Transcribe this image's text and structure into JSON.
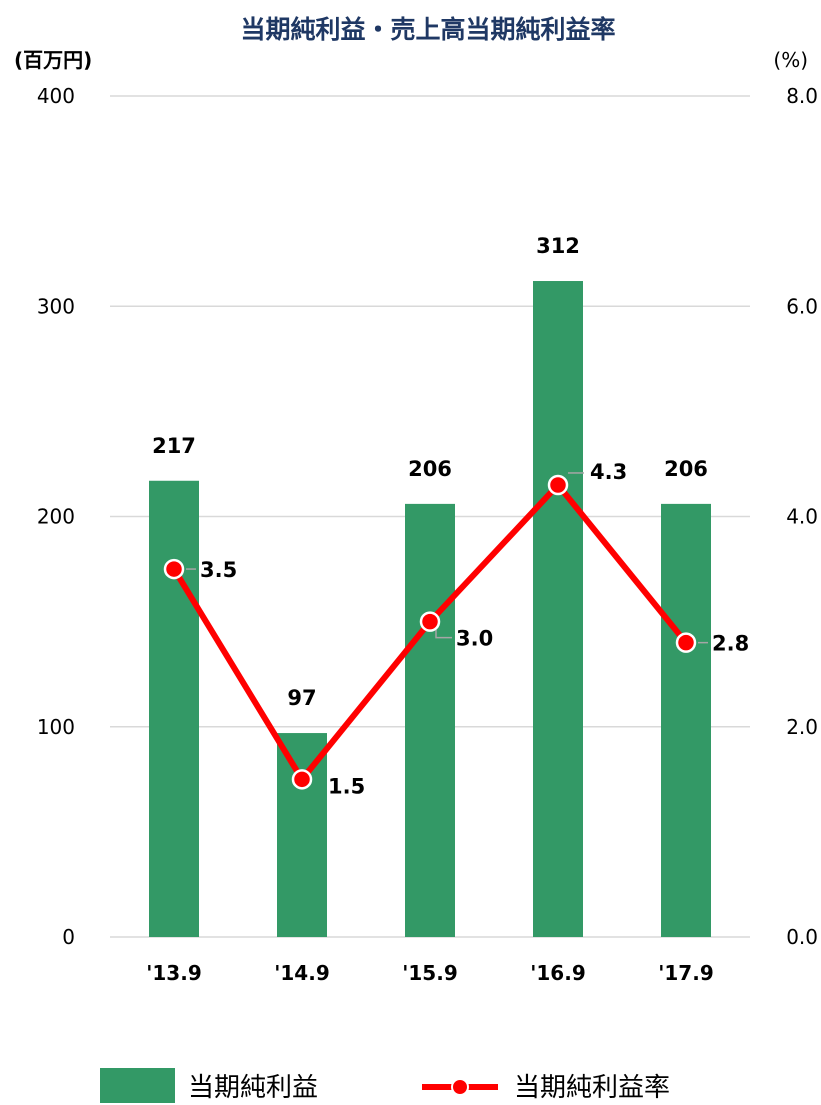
{
  "chart_data": {
    "type": "bar+line",
    "title": "当期純利益・売上高当期純利益率",
    "categories": [
      "'13.9",
      "'14.9",
      "'15.9",
      "'16.9",
      "'17.9"
    ],
    "series": [
      {
        "name": "当期純利益",
        "type": "bar",
        "axis": "left",
        "values": [
          217,
          97,
          206,
          312,
          206
        ],
        "color": "#339966"
      },
      {
        "name": "当期純利益率",
        "type": "line",
        "axis": "right",
        "values": [
          3.5,
          1.5,
          3.0,
          4.3,
          2.8
        ],
        "color": "#ff0000"
      }
    ],
    "left_axis": {
      "unit": "(百万円)",
      "ylim": [
        0,
        400
      ],
      "ticks": [
        "0",
        "100",
        "200",
        "300",
        "400"
      ]
    },
    "right_axis": {
      "unit": "(%)",
      "ylim": [
        0,
        8
      ],
      "ticks": [
        "0.0",
        "2.0",
        "4.0",
        "6.0",
        "8.0"
      ]
    },
    "bar_labels": [
      "217",
      "97",
      "206",
      "312",
      "206"
    ],
    "line_labels": [
      "3.5",
      "1.5",
      "3.0",
      "4.3",
      "2.8"
    ],
    "grid": true,
    "legend": {
      "position": "bottom",
      "entries": [
        "当期純利益",
        "当期純利益率"
      ]
    }
  }
}
